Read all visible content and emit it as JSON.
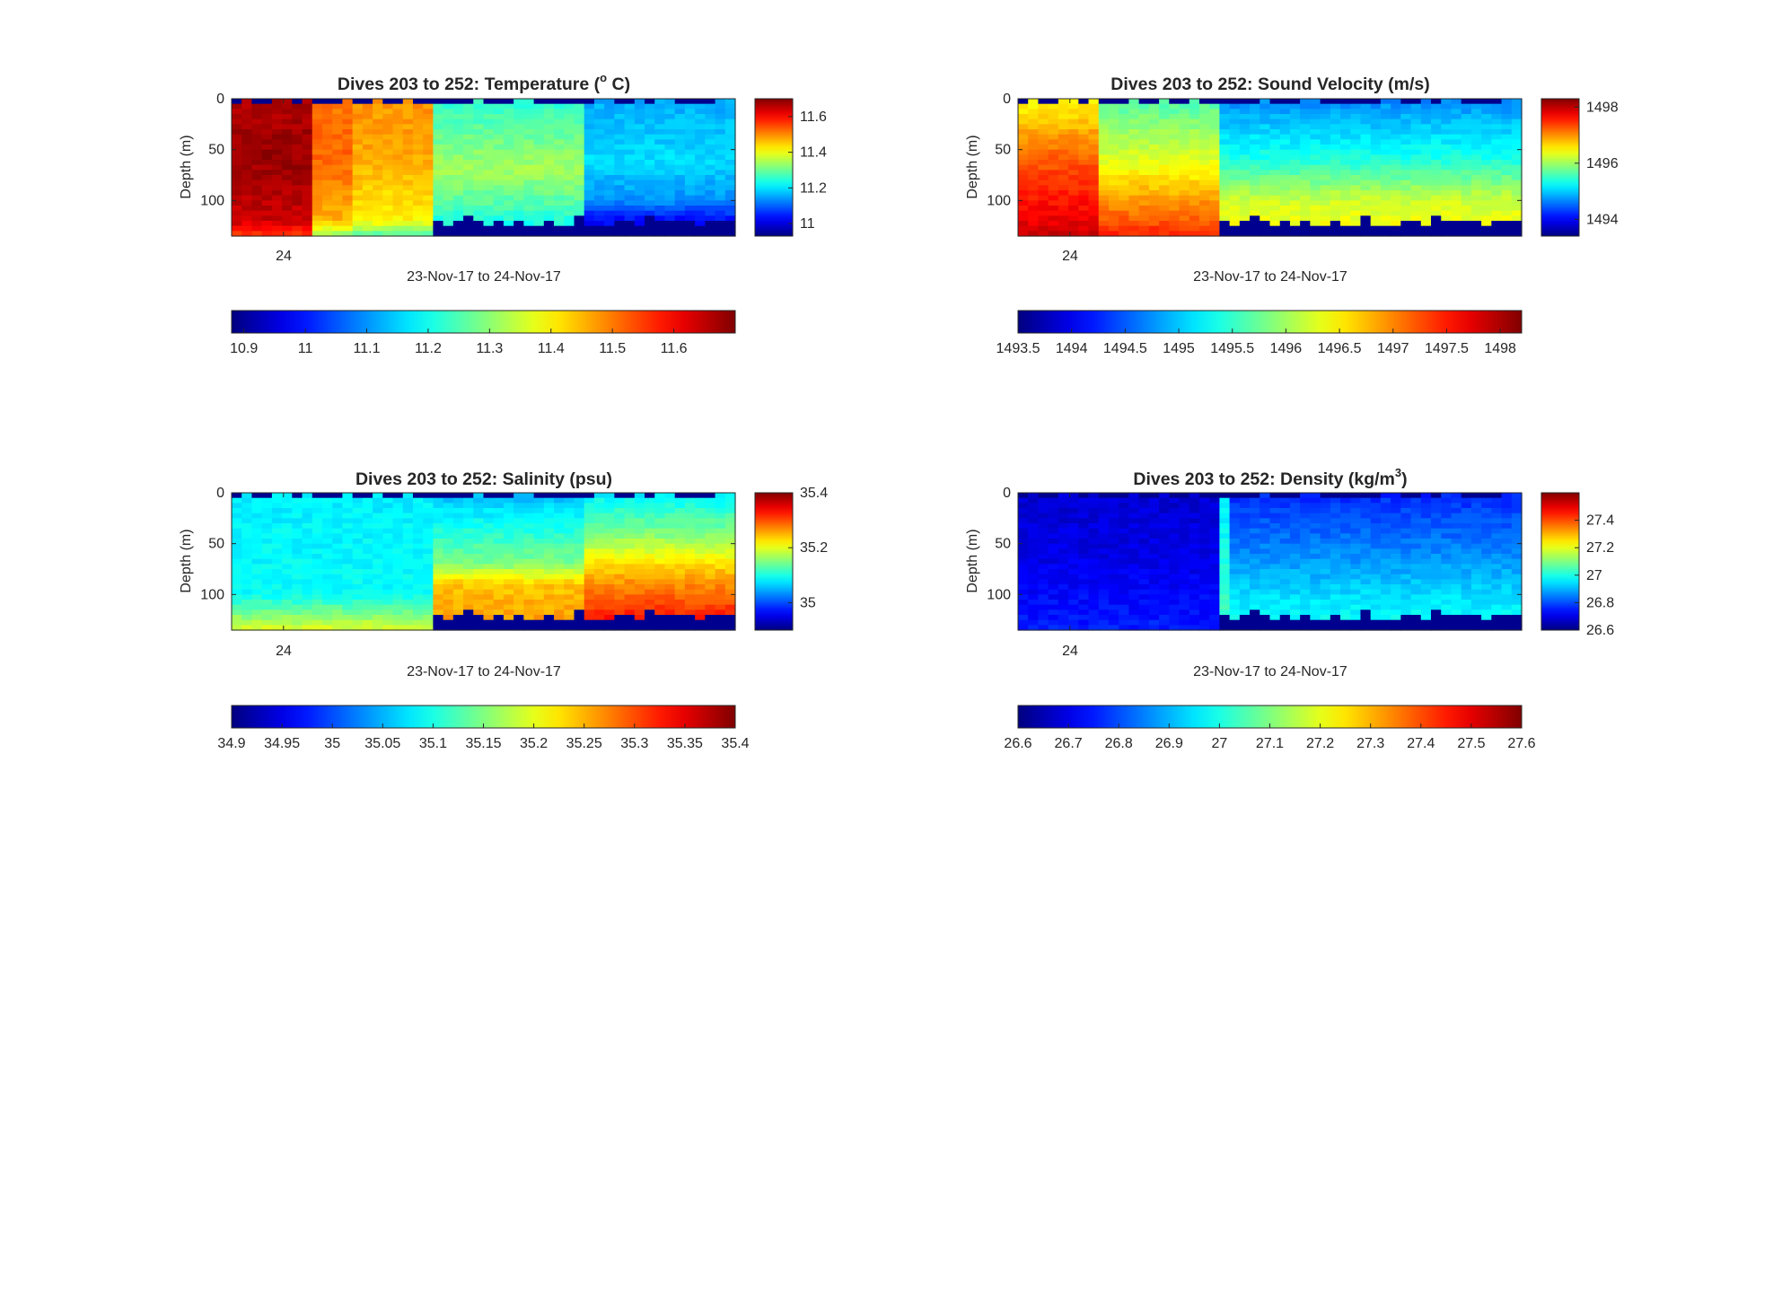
{
  "figure": {
    "background": "#ffffff",
    "colormap": "jet",
    "panels": [
      {
        "name": "temperature",
        "title": "Dives 203 to 252: Temperature (",
        "title_sup": "o",
        "title_end": " C)",
        "ylabel": "Depth (m)",
        "xlabel": "23-Nov-17 to 24-Nov-17",
        "xticks": [
          "24"
        ],
        "yticks": [
          "0",
          "50",
          "100"
        ],
        "side_colorbar": {
          "range": [
            10.93,
            11.7
          ],
          "ticks": [
            {
              "v": 11,
              "label": "11"
            },
            {
              "v": 11.2,
              "label": "11.2"
            },
            {
              "v": 11.4,
              "label": "11.4"
            },
            {
              "v": 11.6,
              "label": "11.6"
            }
          ]
        },
        "bottom_colorbar": {
          "range": [
            10.88,
            11.7
          ],
          "ticks": [
            {
              "v": 10.9,
              "label": "10.9"
            },
            {
              "v": 11,
              "label": "11"
            },
            {
              "v": 11.1,
              "label": "11.1"
            },
            {
              "v": 11.2,
              "label": "11.2"
            },
            {
              "v": 11.3,
              "label": "11.3"
            },
            {
              "v": 11.4,
              "label": "11.4"
            },
            {
              "v": 11.5,
              "label": "11.5"
            },
            {
              "v": 11.6,
              "label": "11.6"
            }
          ]
        }
      },
      {
        "name": "sound-velocity",
        "title": "Dives 203 to 252: Sound Velocity (m/s)",
        "title_sup": "",
        "title_end": "",
        "ylabel": "Depth (m)",
        "xlabel": "23-Nov-17 to 24-Nov-17",
        "xticks": [
          "24"
        ],
        "yticks": [
          "0",
          "50",
          "100"
        ],
        "side_colorbar": {
          "range": [
            1493.4,
            1498.3
          ],
          "ticks": [
            {
              "v": 1494,
              "label": "1494"
            },
            {
              "v": 1496,
              "label": "1496"
            },
            {
              "v": 1498,
              "label": "1498"
            }
          ]
        },
        "bottom_colorbar": {
          "range": [
            1493.5,
            1498.2
          ],
          "ticks": [
            {
              "v": 1493.5,
              "label": "1493.5"
            },
            {
              "v": 1494,
              "label": "1494"
            },
            {
              "v": 1494.5,
              "label": "1494.5"
            },
            {
              "v": 1495,
              "label": "1495"
            },
            {
              "v": 1495.5,
              "label": "1495.5"
            },
            {
              "v": 1496,
              "label": "1496"
            },
            {
              "v": 1496.5,
              "label": "1496.5"
            },
            {
              "v": 1497,
              "label": "1497"
            },
            {
              "v": 1497.5,
              "label": "1497.5"
            },
            {
              "v": 1498,
              "label": "1498"
            }
          ]
        }
      },
      {
        "name": "salinity",
        "title": "Dives 203 to 252: Salinity (psu)",
        "title_sup": "",
        "title_end": "",
        "ylabel": "Depth (m)",
        "xlabel": "23-Nov-17 to 24-Nov-17",
        "xticks": [
          "24"
        ],
        "yticks": [
          "0",
          "50",
          "100"
        ],
        "side_colorbar": {
          "range": [
            34.9,
            35.4
          ],
          "ticks": [
            {
              "v": 35,
              "label": "35"
            },
            {
              "v": 35.2,
              "label": "35.2"
            },
            {
              "v": 35.4,
              "label": "35.4"
            }
          ]
        },
        "bottom_colorbar": {
          "range": [
            34.9,
            35.4
          ],
          "ticks": [
            {
              "v": 34.9,
              "label": "34.9"
            },
            {
              "v": 34.95,
              "label": "34.95"
            },
            {
              "v": 35,
              "label": "35"
            },
            {
              "v": 35.05,
              "label": "35.05"
            },
            {
              "v": 35.1,
              "label": "35.1"
            },
            {
              "v": 35.15,
              "label": "35.15"
            },
            {
              "v": 35.2,
              "label": "35.2"
            },
            {
              "v": 35.25,
              "label": "35.25"
            },
            {
              "v": 35.3,
              "label": "35.3"
            },
            {
              "v": 35.35,
              "label": "35.35"
            },
            {
              "v": 35.4,
              "label": "35.4"
            }
          ]
        }
      },
      {
        "name": "density",
        "title": "Dives 203 to 252: Density (kg/m",
        "title_sup": "3",
        "title_end": ")",
        "ylabel": "Depth (m)",
        "xlabel": "23-Nov-17 to 24-Nov-17",
        "xticks": [
          "24"
        ],
        "yticks": [
          "0",
          "50",
          "100"
        ],
        "side_colorbar": {
          "range": [
            26.6,
            27.6
          ],
          "ticks": [
            {
              "v": 26.6,
              "label": "26.6"
            },
            {
              "v": 26.8,
              "label": "26.8"
            },
            {
              "v": 27,
              "label": "27"
            },
            {
              "v": 27.2,
              "label": "27.2"
            },
            {
              "v": 27.4,
              "label": "27.4"
            }
          ]
        },
        "bottom_colorbar": {
          "range": [
            26.6,
            27.6
          ],
          "ticks": [
            {
              "v": 26.6,
              "label": "26.6"
            },
            {
              "v": 26.7,
              "label": "26.7"
            },
            {
              "v": 26.8,
              "label": "26.8"
            },
            {
              "v": 26.9,
              "label": "26.9"
            },
            {
              "v": 27,
              "label": "27"
            },
            {
              "v": 27.1,
              "label": "27.1"
            },
            {
              "v": 27.2,
              "label": "27.2"
            },
            {
              "v": 27.3,
              "label": "27.3"
            },
            {
              "v": 27.4,
              "label": "27.4"
            },
            {
              "v": 27.5,
              "label": "27.5"
            },
            {
              "v": 27.6,
              "label": "27.6"
            }
          ]
        }
      }
    ]
  },
  "chart_data": [
    {
      "type": "heatmap",
      "title": "Dives 203 to 252: Temperature (o C)",
      "xlabel": "23-Nov-17 to 24-Nov-17",
      "ylabel": "Depth (m)",
      "ylim": [
        0,
        135
      ],
      "y_reversed": true,
      "yticks": [
        0,
        50,
        100
      ],
      "xticks": [
        "24"
      ],
      "dives": 50,
      "depth_bin_m": 5,
      "dive_split": 20,
      "color_range": [
        10.88,
        11.7
      ],
      "profile_segments": [
        {
          "dives": [
            1,
            8
          ],
          "depth_values": [
            [
              0,
              11.66
            ],
            [
              60,
              11.68
            ],
            [
              120,
              11.64
            ],
            [
              135,
              11.55
            ]
          ]
        },
        {
          "dives": [
            9,
            12
          ],
          "depth_values": [
            [
              0,
              11.5
            ],
            [
              60,
              11.52
            ],
            [
              120,
              11.45
            ],
            [
              135,
              11.3
            ]
          ]
        },
        {
          "dives": [
            13,
            20
          ],
          "depth_values": [
            [
              0,
              11.48
            ],
            [
              60,
              11.46
            ],
            [
              120,
              11.4
            ],
            [
              135,
              11.25
            ]
          ]
        },
        {
          "dives": [
            21,
            35
          ],
          "depth_values": [
            [
              0,
              11.22
            ],
            [
              70,
              11.32
            ],
            [
              100,
              11.26
            ],
            [
              125,
              11.2
            ]
          ]
        },
        {
          "dives": [
            36,
            50
          ],
          "depth_values": [
            [
              0,
              11.12
            ],
            [
              60,
              11.16
            ],
            [
              100,
              11.1
            ],
            [
              120,
              10.98
            ]
          ]
        }
      ],
      "no_data_color": "#00008f"
    },
    {
      "type": "heatmap",
      "title": "Dives 203 to 252: Sound Velocity (m/s)",
      "xlabel": "23-Nov-17 to 24-Nov-17",
      "ylabel": "Depth (m)",
      "ylim": [
        0,
        135
      ],
      "y_reversed": true,
      "yticks": [
        0,
        50,
        100
      ],
      "xticks": [
        "24"
      ],
      "dives": 50,
      "depth_bin_m": 5,
      "dive_split": 20,
      "color_range": [
        1493.5,
        1498.2
      ],
      "profile_segments": [
        {
          "dives": [
            1,
            8
          ],
          "depth_values": [
            [
              0,
              1496.4
            ],
            [
              60,
              1497.2
            ],
            [
              120,
              1497.7
            ],
            [
              135,
              1497.9
            ]
          ]
        },
        {
          "dives": [
            9,
            20
          ],
          "depth_values": [
            [
              0,
              1495.6
            ],
            [
              60,
              1496.3
            ],
            [
              120,
              1497.2
            ],
            [
              135,
              1497.5
            ]
          ]
        },
        {
          "dives": [
            21,
            50
          ],
          "depth_values": [
            [
              0,
              1494.7
            ],
            [
              60,
              1495.4
            ],
            [
              100,
              1496.2
            ],
            [
              125,
              1496.4
            ]
          ]
        }
      ],
      "no_data_color": "#00008f"
    },
    {
      "type": "heatmap",
      "title": "Dives 203 to 252: Salinity (psu)",
      "xlabel": "23-Nov-17 to 24-Nov-17",
      "ylabel": "Depth (m)",
      "ylim": [
        0,
        135
      ],
      "y_reversed": true,
      "yticks": [
        0,
        50,
        100
      ],
      "xticks": [
        "24"
      ],
      "dives": 50,
      "depth_bin_m": 5,
      "dive_split": 20,
      "color_range": [
        34.9,
        35.4
      ],
      "profile_segments": [
        {
          "dives": [
            1,
            20
          ],
          "depth_values": [
            [
              0,
              35.08
            ],
            [
              100,
              35.09
            ],
            [
              120,
              35.15
            ],
            [
              135,
              35.2
            ]
          ]
        },
        {
          "dives": [
            21,
            35
          ],
          "depth_values": [
            [
              0,
              35.05
            ],
            [
              70,
              35.15
            ],
            [
              90,
              35.24
            ],
            [
              125,
              35.26
            ]
          ]
        },
        {
          "dives": [
            36,
            50
          ],
          "depth_values": [
            [
              0,
              35.08
            ],
            [
              40,
              35.15
            ],
            [
              80,
              35.25
            ],
            [
              125,
              35.33
            ]
          ]
        }
      ],
      "no_data_color": "#00008f"
    },
    {
      "type": "heatmap",
      "title": "Dives 203 to 252: Density (kg/m3)",
      "xlabel": "23-Nov-17 to 24-Nov-17",
      "ylabel": "Depth (m)",
      "ylim": [
        0,
        135
      ],
      "y_reversed": true,
      "yticks": [
        0,
        50,
        100
      ],
      "xticks": [
        "24"
      ],
      "dives": 50,
      "depth_bin_m": 5,
      "dive_split": 20,
      "color_range": [
        26.6,
        27.6
      ],
      "profile_segments": [
        {
          "dives": [
            1,
            20
          ],
          "depth_values": [
            [
              0,
              26.68
            ],
            [
              60,
              26.7
            ],
            [
              120,
              26.74
            ],
            [
              135,
              26.76
            ]
          ]
        },
        {
          "dives": [
            21,
            21
          ],
          "depth_values": [
            [
              0,
              26.95
            ],
            [
              135,
              27.05
            ]
          ]
        },
        {
          "dives": [
            22,
            50
          ],
          "depth_values": [
            [
              0,
              26.76
            ],
            [
              60,
              26.86
            ],
            [
              100,
              26.94
            ],
            [
              125,
              26.98
            ]
          ]
        }
      ],
      "no_data_color": "#00008f"
    }
  ]
}
